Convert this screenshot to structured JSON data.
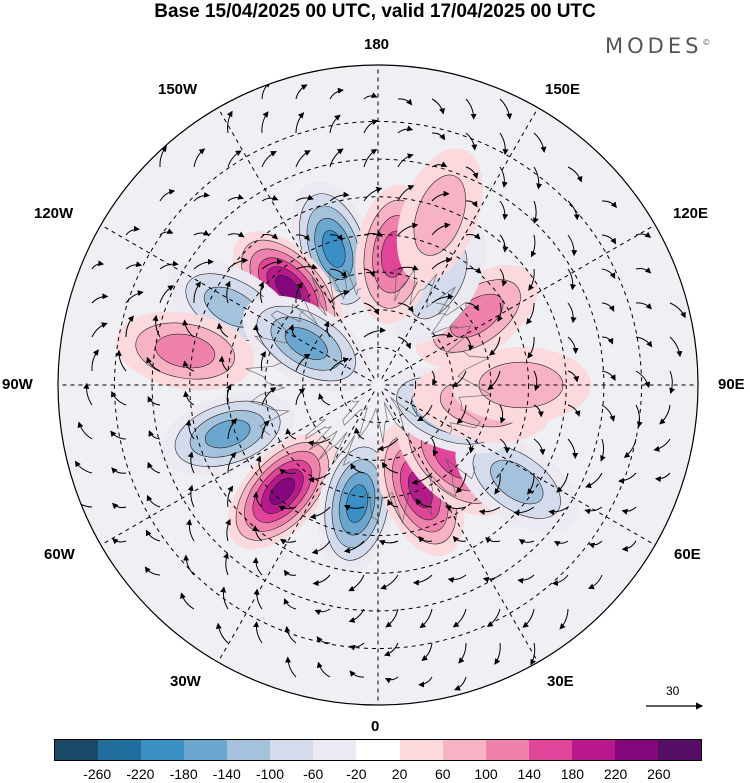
{
  "title": "Base 15/04/2025 00 UTC, valid 17/04/2025 00 UTC",
  "brand": "MODES",
  "brand_mark": "©",
  "longitude_labels": {
    "lon_180": "180",
    "lon_150e": "150E",
    "lon_120e": "120E",
    "lon_90e": "90E",
    "lon_60e": "60E",
    "lon_30e": "30E",
    "lon_0": "0",
    "lon_30w": "30W",
    "lon_60w": "60W",
    "lon_90w": "90W",
    "lon_120w": "120W",
    "lon_150w": "150W"
  },
  "vector_scale": {
    "label": "30",
    "icon": "arrow-right-icon"
  },
  "colorbar": {
    "colors": [
      "#1a4968",
      "#1f6e9c",
      "#3a8fc4",
      "#6ba6cf",
      "#a4c2dc",
      "#d3dbec",
      "#ece9f2",
      "#ffffff",
      "#fbd9dc",
      "#f7b3c4",
      "#ef82ac",
      "#e0459a",
      "#b7198c",
      "#84077d",
      "#551066"
    ],
    "tick_labels": [
      "-260",
      "-220",
      "-180",
      "-140",
      "-100",
      "-60",
      "-20",
      "20",
      "60",
      "100",
      "140",
      "180",
      "220",
      "260"
    ]
  },
  "map_data": {
    "projection": "north-polar-stereographic",
    "anomalies": [
      {
        "lon": -162,
        "lat": 52,
        "value": -200
      },
      {
        "lon": -137,
        "lat": 55,
        "value": 240
      },
      {
        "lon": -118,
        "lat": 46,
        "value": -120
      },
      {
        "lon": -100,
        "lat": 38,
        "value": 130
      },
      {
        "lon": -120,
        "lat": 68,
        "value": -150
      },
      {
        "lon": -72,
        "lat": 48,
        "value": -170
      },
      {
        "lon": -42,
        "lat": 52,
        "value": 230
      },
      {
        "lon": -10,
        "lat": 58,
        "value": -180
      },
      {
        "lon": 22,
        "lat": 60,
        "value": 200
      },
      {
        "lon": 45,
        "lat": 62,
        "value": 150
      },
      {
        "lon": 55,
        "lat": 45,
        "value": -130
      },
      {
        "lon": 70,
        "lat": 70,
        "value": -150
      },
      {
        "lon": 80,
        "lat": 62,
        "value": 90
      },
      {
        "lon": 90,
        "lat": 52,
        "value": 60
      },
      {
        "lon": 125,
        "lat": 58,
        "value": 120
      },
      {
        "lon": 150,
        "lat": 58,
        "value": -80
      },
      {
        "lon": 173,
        "lat": 55,
        "value": 160
      },
      {
        "lon": 160,
        "lat": 42,
        "value": 60
      }
    ]
  }
}
